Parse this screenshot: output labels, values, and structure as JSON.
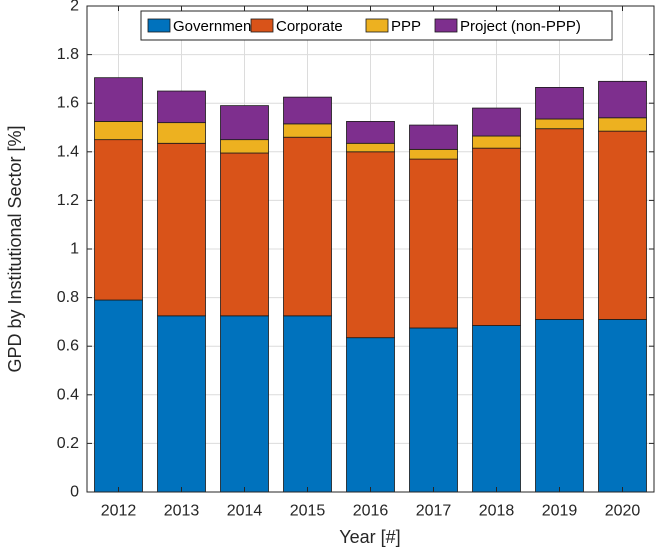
{
  "chart_data": {
    "type": "bar",
    "stacked": true,
    "title": "",
    "xlabel": "Year [#]",
    "ylabel": "GPD by Institutional Sector [%]",
    "categories": [
      "2012",
      "2013",
      "2014",
      "2015",
      "2016",
      "2017",
      "2018",
      "2019",
      "2020"
    ],
    "ylim": [
      0,
      2
    ],
    "yticks": [
      "0",
      "0.2",
      "0.4",
      "0.6",
      "0.8",
      "1",
      "1.2",
      "1.4",
      "1.6",
      "1.8",
      "2"
    ],
    "grid": true,
    "legend_position": "top",
    "series": [
      {
        "name": "Government",
        "color": "#0072bd",
        "values": [
          0.79,
          0.725,
          0.725,
          0.725,
          0.635,
          0.675,
          0.685,
          0.71,
          0.71
        ]
      },
      {
        "name": "Corporate",
        "color": "#d95319",
        "values": [
          0.66,
          0.71,
          0.67,
          0.735,
          0.765,
          0.695,
          0.73,
          0.785,
          0.775
        ]
      },
      {
        "name": "PPP",
        "color": "#edb120",
        "values": [
          0.075,
          0.085,
          0.055,
          0.055,
          0.035,
          0.04,
          0.05,
          0.04,
          0.055
        ]
      },
      {
        "name": "Project (non-PPP)",
        "color": "#7e2f8e",
        "values": [
          0.18,
          0.13,
          0.14,
          0.11,
          0.09,
          0.1,
          0.115,
          0.13,
          0.15
        ]
      }
    ]
  }
}
